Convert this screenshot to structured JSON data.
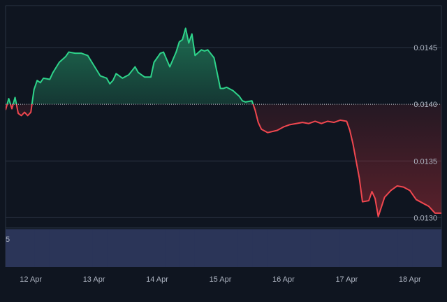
{
  "chart_data": {
    "type": "area",
    "x_ticks": [
      "12 Apr",
      "13 Apr",
      "14 Apr",
      "15 Apr",
      "16 Apr",
      "17 Apr",
      "18 Apr"
    ],
    "y_ticks": [
      "0.0145",
      "0.0140",
      "0.0135",
      "0.0130"
    ],
    "y_tick_values": [
      0.0145,
      0.014,
      0.0135,
      0.013
    ],
    "ylim": [
      0.01291,
      0.01487
    ],
    "xlim": [
      11.6,
      18.5
    ],
    "baseline": 0.014,
    "grid": true,
    "colors": {
      "background": "#0f1520",
      "grid": "#2a3342",
      "baseline": "#c9ced6",
      "up_line": "#2ed38a",
      "up_fill": "#2ed38a",
      "down_line": "#f0474f",
      "down_fill": "#c0303a",
      "volume": "#2b3558"
    },
    "series": [
      {
        "x": [
          11.6,
          11.65,
          11.7,
          11.75,
          11.8,
          11.85,
          11.9,
          11.95,
          12.0,
          12.05,
          12.1,
          12.15,
          12.2,
          12.3,
          12.35,
          12.45,
          12.55,
          12.6,
          12.7,
          12.8,
          12.9,
          13.0,
          13.1,
          13.2,
          13.25,
          13.3,
          13.35,
          13.45,
          13.55,
          13.65,
          13.7,
          13.8,
          13.9,
          13.95,
          14.05,
          14.1,
          14.2,
          14.3,
          14.35,
          14.4,
          14.45,
          14.5,
          14.55,
          14.6,
          14.7,
          14.75,
          14.8,
          14.9,
          15.0,
          15.05,
          15.1,
          15.2,
          15.3,
          15.35,
          15.4,
          15.5,
          15.55,
          15.6,
          15.65,
          15.75,
          15.9,
          16.0,
          16.1,
          16.3,
          16.4,
          16.5,
          16.6,
          16.7,
          16.8,
          16.9,
          17.0,
          17.05,
          17.1,
          17.15,
          17.2,
          17.25,
          17.35,
          17.4,
          17.45,
          17.5,
          17.6,
          17.7,
          17.8,
          17.9,
          18.0,
          18.1,
          18.2,
          18.3,
          18.4,
          18.5
        ],
        "y": [
          0.01395,
          0.01405,
          0.01396,
          0.01406,
          0.01392,
          0.0139,
          0.01393,
          0.0139,
          0.01393,
          0.01413,
          0.01421,
          0.01419,
          0.01423,
          0.01422,
          0.01428,
          0.01437,
          0.01442,
          0.01446,
          0.01445,
          0.01445,
          0.01443,
          0.01434,
          0.01425,
          0.01423,
          0.01418,
          0.01421,
          0.01427,
          0.01423,
          0.01426,
          0.01433,
          0.01428,
          0.01424,
          0.01424,
          0.01437,
          0.01445,
          0.01446,
          0.01433,
          0.01446,
          0.01455,
          0.01457,
          0.01467,
          0.01454,
          0.01462,
          0.01443,
          0.01448,
          0.01447,
          0.01448,
          0.01441,
          0.01414,
          0.01414,
          0.01415,
          0.01412,
          0.01407,
          0.01403,
          0.01402,
          0.01403,
          0.01395,
          0.01384,
          0.01378,
          0.01375,
          0.01377,
          0.0138,
          0.01382,
          0.01384,
          0.01383,
          0.01385,
          0.01383,
          0.01385,
          0.01384,
          0.01386,
          0.01385,
          0.01377,
          0.01365,
          0.0135,
          0.01335,
          0.01314,
          0.01315,
          0.01323,
          0.01317,
          0.01301,
          0.01318,
          0.01324,
          0.01328,
          0.01327,
          0.01324,
          0.01316,
          0.01313,
          0.0131,
          0.01304,
          0.01304
        ]
      }
    ],
    "volume_axis_label": "5",
    "volume": [
      0.7,
      0.7,
      0.68,
      0.68,
      0.66,
      0.64,
      0.63,
      0.64,
      0.65,
      0.66,
      0.67,
      0.68,
      0.7,
      0.71,
      0.73,
      0.75,
      0.76,
      0.77,
      0.78,
      0.79,
      0.78,
      0.77,
      0.76,
      0.74,
      0.73,
      0.72,
      0.72,
      0.71,
      0.7,
      0.7
    ]
  }
}
